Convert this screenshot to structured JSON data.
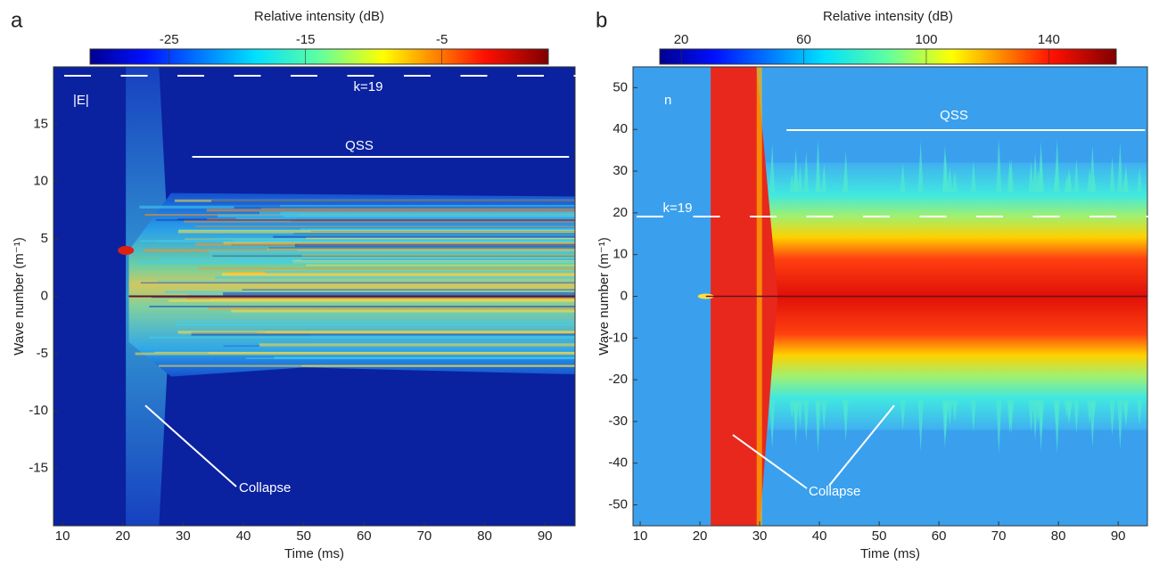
{
  "chart_data": [
    {
      "type": "heatmap",
      "panel_label": "a",
      "colorbar_label": "Relative intensity (dB)",
      "colorbar_lim": [
        -30.8,
        2.8
      ],
      "colorbar_ticks": [
        -25,
        -15,
        -5
      ],
      "x_label": "Time (ms)",
      "y_label": "Wave number (m⁻¹)",
      "xlim": [
        8.5,
        95
      ],
      "xticks": [
        10,
        20,
        30,
        40,
        50,
        60,
        70,
        80,
        90
      ],
      "ylim": [
        -20,
        20
      ],
      "yticks": [
        -15,
        -10,
        -5,
        0,
        5,
        10,
        15
      ],
      "annotations": [
        "|E|",
        "k=19",
        "QSS",
        "Collapse"
      ]
    },
    {
      "type": "heatmap",
      "panel_label": "b",
      "colorbar_label": "Relative intensity (dB)",
      "colorbar_lim": [
        13,
        162
      ],
      "colorbar_ticks": [
        20,
        60,
        100,
        140
      ],
      "x_label": "Time (ms)",
      "y_label": "Wave number (m⁻¹)",
      "xlim": [
        8.8,
        94.9
      ],
      "xticks": [
        10,
        20,
        30,
        40,
        50,
        60,
        70,
        80,
        90
      ],
      "ylim": [
        -55,
        55
      ],
      "yticks": [
        -50,
        -40,
        -30,
        -20,
        -10,
        0,
        10,
        20,
        30,
        40,
        50
      ],
      "annotations": [
        "n",
        "k=19",
        "QSS",
        "Collapse"
      ]
    }
  ]
}
